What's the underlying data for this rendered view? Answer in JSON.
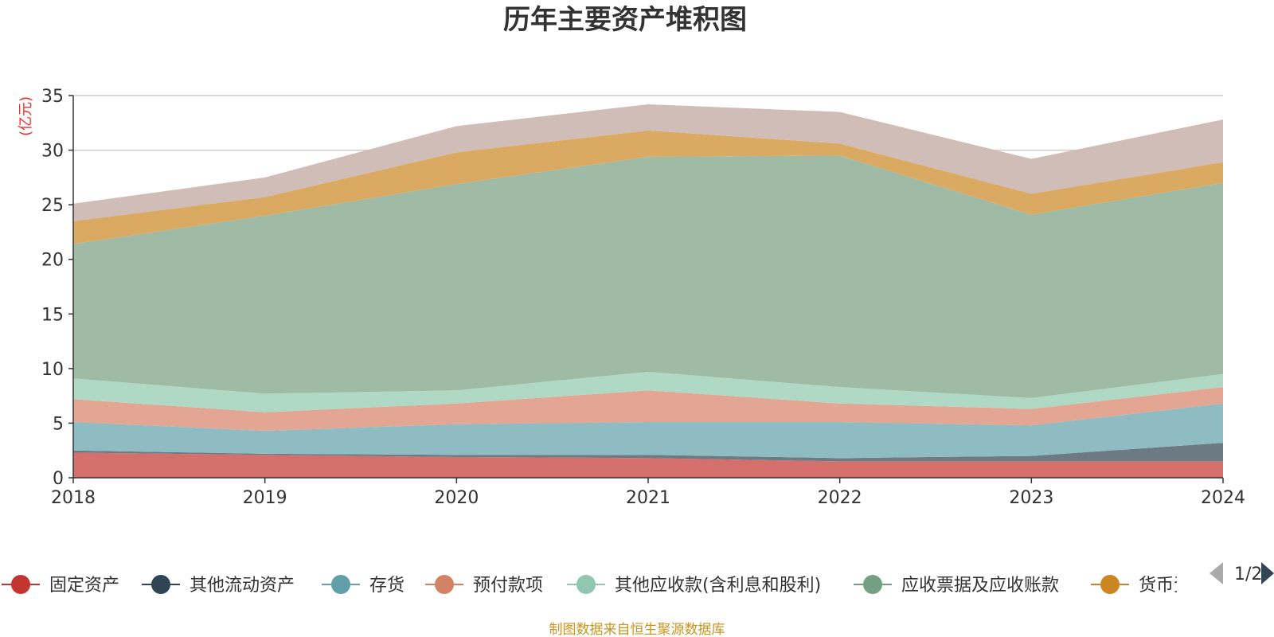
{
  "chart_data": {
    "type": "area",
    "title": "历年主要资产堆积图",
    "ylabel": "(亿元)",
    "x": [
      "2018",
      "2019",
      "2020",
      "2021",
      "2022",
      "2023",
      "2024"
    ],
    "ylim": [
      0,
      35
    ],
    "yticks": [
      "0",
      "5",
      "10",
      "15",
      "20",
      "25",
      "30",
      "35"
    ],
    "grid": true,
    "stacked": true,
    "legend_position": "bottom",
    "series": [
      {
        "name": "固定资产",
        "color": "#d46f6c",
        "values": [
          2.3,
          2.1,
          1.9,
          1.8,
          1.5,
          1.5,
          1.5
        ]
      },
      {
        "name": "其他流动资产",
        "color": "#6c7a84",
        "values": [
          0.2,
          0.1,
          0.2,
          0.3,
          0.3,
          0.5,
          1.7
        ]
      },
      {
        "name": "存货",
        "color": "#8fbcc2",
        "values": [
          2.6,
          2.1,
          2.8,
          3.0,
          3.3,
          2.8,
          3.6
        ]
      },
      {
        "name": "预付款项",
        "color": "#e3a692",
        "values": [
          2.1,
          1.7,
          1.9,
          2.9,
          1.7,
          1.5,
          1.5
        ]
      },
      {
        "name": "其他应收款(含利息和股利)",
        "color": "#b0d9c5",
        "values": [
          1.9,
          1.7,
          1.2,
          1.7,
          1.5,
          1.0,
          1.2
        ]
      },
      {
        "name": "应收票据及应收账款",
        "color": "#9fbba6",
        "values": [
          12.3,
          16.3,
          18.9,
          19.7,
          21.2,
          16.8,
          17.5
        ]
      },
      {
        "name": "货币资金",
        "color": "#dbaa62",
        "values": [
          2.1,
          1.7,
          2.9,
          2.4,
          1.1,
          1.9,
          1.9
        ]
      },
      {
        "name": "",
        "color": "#d0bdb7",
        "values": [
          1.6,
          1.8,
          2.4,
          2.4,
          2.9,
          3.2,
          3.9
        ]
      }
    ]
  },
  "legend": {
    "items": [
      {
        "label": "固定资产",
        "color": "#c23531"
      },
      {
        "label": "其他流动资产",
        "color": "#2f4554"
      },
      {
        "label": "存货",
        "color": "#61a0a8"
      },
      {
        "label": "预付款项",
        "color": "#d48265"
      },
      {
        "label": "其他应收款(含利息和股利)",
        "color": "#91c7ae"
      },
      {
        "label": "应收票据及应收账款",
        "color": "#749f83"
      },
      {
        "label": "货币资金",
        "color": "#ca8622"
      }
    ],
    "page_indicator": "1/2"
  },
  "source_note": "制图数据来自恒生聚源数据库"
}
